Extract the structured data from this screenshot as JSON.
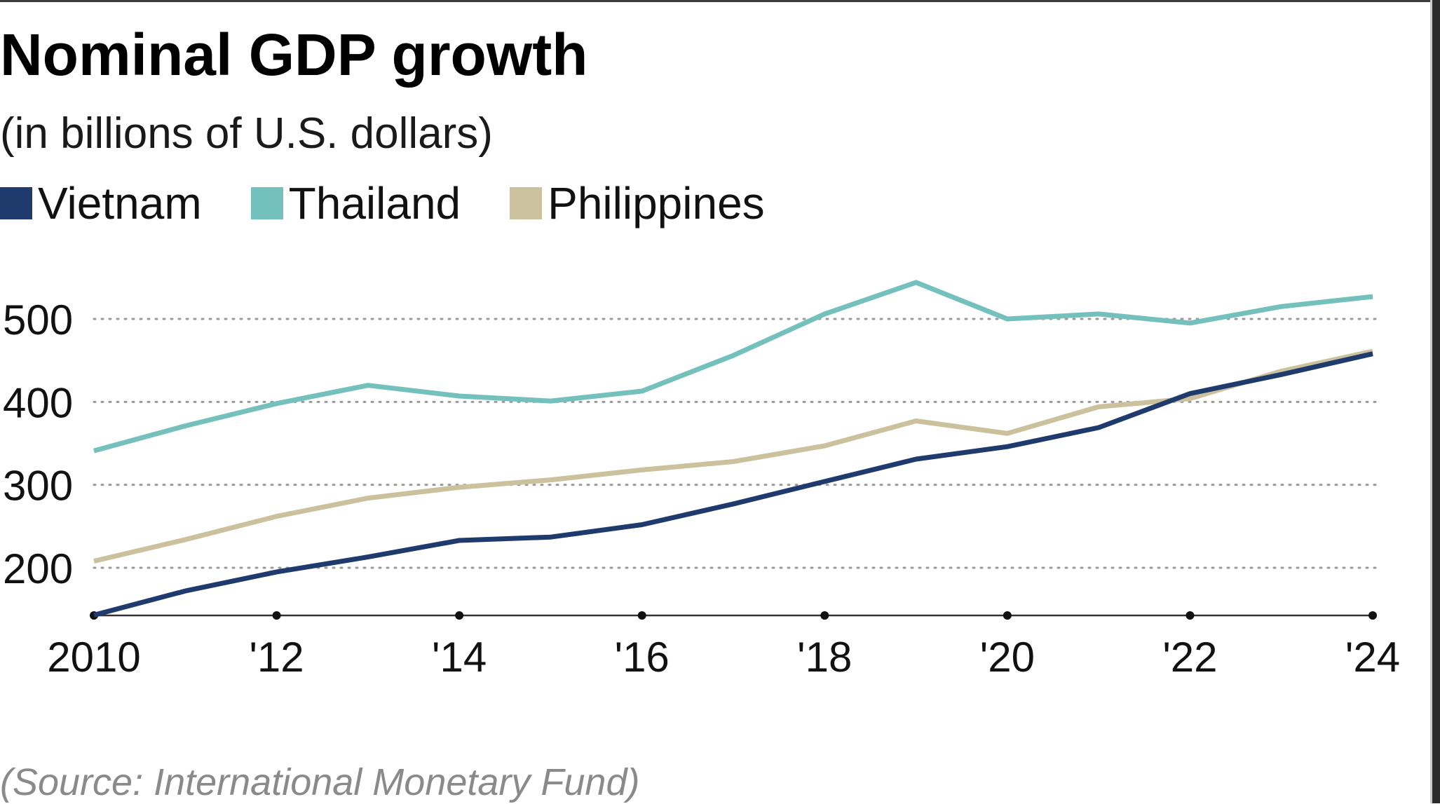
{
  "title": "Nominal GDP growth",
  "subtitle": "(in billions of U.S. dollars)",
  "source": "(Source: International Monetary Fund)",
  "legend": [
    {
      "label": "Vietnam",
      "color": "#1f3b6e"
    },
    {
      "label": "Thailand",
      "color": "#74c0bc"
    },
    {
      "label": "Philippines",
      "color": "#cbc19c"
    }
  ],
  "chart_data": {
    "type": "line",
    "title": "Nominal GDP growth",
    "subtitle": "(in billions of U.S. dollars)",
    "xlabel": "",
    "ylabel": "",
    "x": [
      2010,
      2011,
      2012,
      2013,
      2014,
      2015,
      2016,
      2017,
      2018,
      2019,
      2020,
      2021,
      2022,
      2023,
      2024
    ],
    "x_ticks": [
      2010,
      2012,
      2014,
      2016,
      2018,
      2020,
      2022,
      2024
    ],
    "x_tick_labels": [
      "2010",
      "'12",
      "'14",
      "'16",
      "'18",
      "'20",
      "'22",
      "'24"
    ],
    "y_ticks": [
      200,
      300,
      400,
      500
    ],
    "y_tick_labels": [
      "200",
      "300",
      "400",
      "500"
    ],
    "ylim": [
      143,
      560
    ],
    "grid": "horizontal dotted",
    "legend_position": "top-left",
    "series": [
      {
        "name": "Vietnam",
        "color": "#1f3b6e",
        "values": [
          143,
          172,
          195,
          213,
          233,
          237,
          252,
          277,
          304,
          331,
          346,
          369,
          410,
          433,
          458
        ]
      },
      {
        "name": "Thailand",
        "color": "#74c0bc",
        "values": [
          341,
          371,
          398,
          420,
          407,
          401,
          413,
          456,
          506,
          544,
          500,
          506,
          495,
          515,
          527
        ]
      },
      {
        "name": "Philippines",
        "color": "#cbc19c",
        "values": [
          208,
          234,
          262,
          284,
          297,
          306,
          318,
          328,
          347,
          377,
          362,
          394,
          404,
          437,
          461
        ]
      }
    ]
  }
}
